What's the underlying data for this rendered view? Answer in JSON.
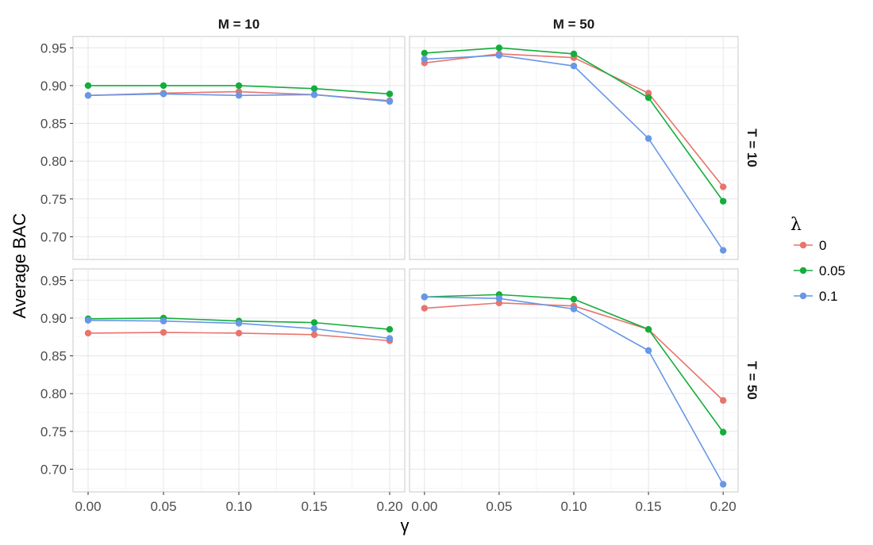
{
  "chart_data": {
    "type": "line",
    "facet_columns": [
      "M = 10",
      "M = 50"
    ],
    "facet_rows": [
      "T = 10",
      "T = 50"
    ],
    "xlabel": "γ",
    "ylabel": "Average BAC",
    "x": [
      0.0,
      0.05,
      0.1,
      0.15,
      0.2
    ],
    "x_tick_labels": [
      "0.00",
      "0.05",
      "0.10",
      "0.15",
      "0.20"
    ],
    "xlim": [
      -0.01,
      0.21
    ],
    "ylim": [
      0.67,
      0.965
    ],
    "y_ticks": [
      0.7,
      0.75,
      0.8,
      0.85,
      0.9,
      0.95
    ],
    "y_tick_labels": [
      "0.70",
      "0.75",
      "0.80",
      "0.85",
      "0.90",
      "0.95"
    ],
    "grid": true,
    "legend": {
      "title": "λ",
      "placement": "right",
      "entries": [
        {
          "label": "0",
          "color": "#e8746c"
        },
        {
          "label": "0.05",
          "color": "#14ad3c"
        },
        {
          "label": "0.1",
          "color": "#6797e8"
        }
      ]
    },
    "panels": [
      {
        "row": 0,
        "col": 0,
        "series": [
          {
            "lambda": "0",
            "color": "#e8746c",
            "values": [
              0.887,
              0.89,
              0.892,
              0.888,
              0.88
            ]
          },
          {
            "lambda": "0.05",
            "color": "#14ad3c",
            "values": [
              0.9,
              0.9,
              0.9,
              0.896,
              0.889
            ]
          },
          {
            "lambda": "0.1",
            "color": "#6797e8",
            "values": [
              0.887,
              0.889,
              0.887,
              0.888,
              0.879
            ]
          }
        ]
      },
      {
        "row": 0,
        "col": 1,
        "series": [
          {
            "lambda": "0",
            "color": "#e8746c",
            "values": [
              0.93,
              0.942,
              0.937,
              0.89,
              0.766
            ]
          },
          {
            "lambda": "0.05",
            "color": "#14ad3c",
            "values": [
              0.943,
              0.95,
              0.942,
              0.884,
              0.747
            ]
          },
          {
            "lambda": "0.1",
            "color": "#6797e8",
            "values": [
              0.935,
              0.94,
              0.926,
              0.83,
              0.682
            ]
          }
        ]
      },
      {
        "row": 1,
        "col": 0,
        "series": [
          {
            "lambda": "0",
            "color": "#e8746c",
            "values": [
              0.88,
              0.881,
              0.88,
              0.878,
              0.87
            ]
          },
          {
            "lambda": "0.05",
            "color": "#14ad3c",
            "values": [
              0.899,
              0.9,
              0.896,
              0.894,
              0.885
            ]
          },
          {
            "lambda": "0.1",
            "color": "#6797e8",
            "values": [
              0.897,
              0.896,
              0.893,
              0.886,
              0.873
            ]
          }
        ]
      },
      {
        "row": 1,
        "col": 1,
        "series": [
          {
            "lambda": "0",
            "color": "#e8746c",
            "values": [
              0.913,
              0.92,
              0.916,
              0.885,
              0.791
            ]
          },
          {
            "lambda": "0.05",
            "color": "#14ad3c",
            "values": [
              0.928,
              0.931,
              0.925,
              0.885,
              0.749
            ]
          },
          {
            "lambda": "0.1",
            "color": "#6797e8",
            "values": [
              0.928,
              0.926,
              0.912,
              0.857,
              0.68
            ]
          }
        ]
      }
    ]
  }
}
